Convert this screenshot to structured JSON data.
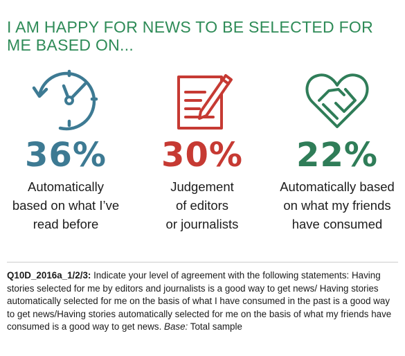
{
  "title": {
    "line1": "I AM HAPPY FOR NEWS TO BE SELECTED FOR",
    "line2": "ME BASED ON..."
  },
  "items": [
    {
      "icon": "clock-icon",
      "percent": "36%",
      "color": "#3d7a93",
      "label_lines": [
        "Automatically",
        "based on what I’ve",
        "read before"
      ]
    },
    {
      "icon": "notepad-pencil-icon",
      "percent": "30%",
      "color": "#c63a33",
      "label_lines": [
        "Judgement",
        "of editors",
        "or journalists"
      ]
    },
    {
      "icon": "heart-handshake-icon",
      "percent": "22%",
      "color": "#2f7d58",
      "label_lines": [
        "Automatically based",
        "on what my friends",
        "have consumed"
      ]
    }
  ],
  "title_color": "#2e8b57",
  "footnote": {
    "ref": "Q10D_2016a_1/2/3:",
    "text": " Indicate your level of agreement with the following statements: Having stories selected for me by editors and journalists is a good way to get news/ Having stories automatically selected for me on the basis of what I have consumed in the past is a good way to get news/Having stories automatically selected for me on the basis of what my friends have consumed is a good way to get news. ",
    "base_label": "Base:",
    "base_text": " Total sample"
  }
}
